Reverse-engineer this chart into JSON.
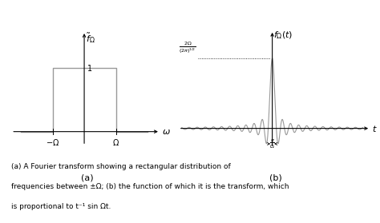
{
  "fig_width": 4.74,
  "fig_height": 2.79,
  "dpi": 100,
  "background_color": "#ffffff",
  "rect_color": "#999999",
  "sinc_color": "#999999",
  "ax_color": "#000000",
  "caption_line1": "(a) A Fourier transform showing a rectangular distribution of",
  "caption_line2": "frequencies between ±Ω; (b) the function of which it is the transform, which",
  "caption_line3": "is proportional to t⁻¹ sin Ωt.",
  "label_a": "(a)",
  "label_b": "(b)"
}
